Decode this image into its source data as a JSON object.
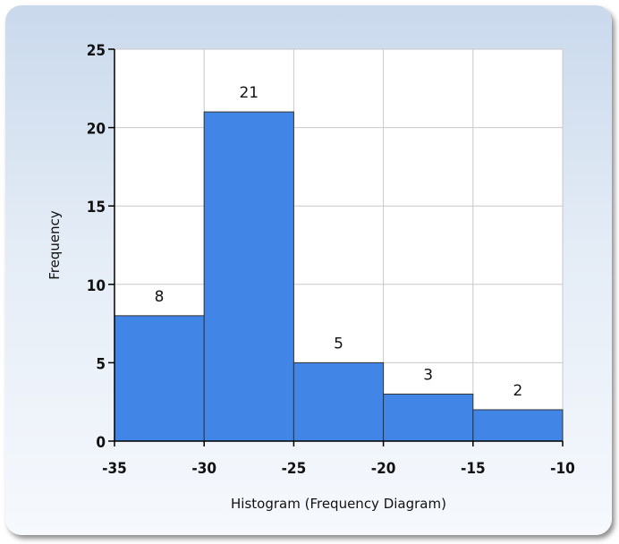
{
  "chart_data": {
    "type": "bar",
    "histogram": true,
    "bins": [
      {
        "from": -35,
        "to": -30,
        "value": 8
      },
      {
        "from": -30,
        "to": -25,
        "value": 21
      },
      {
        "from": -25,
        "to": -20,
        "value": 5
      },
      {
        "from": -20,
        "to": -15,
        "value": 3
      },
      {
        "from": -15,
        "to": -10,
        "value": 2
      }
    ],
    "x_ticks": [
      -35,
      -30,
      -25,
      -20,
      -15,
      -10
    ],
    "y_ticks": [
      0,
      5,
      10,
      15,
      20,
      25
    ],
    "xlim": [
      -35,
      -10
    ],
    "ylim": [
      0,
      25
    ],
    "xlabel": "Histogram (Frequency Diagram)",
    "ylabel": "Frequency",
    "grid": true,
    "legend": "none",
    "colors": {
      "bar_fill": "#4185e6",
      "bar_stroke": "#333333",
      "grid": "#c8c8c8",
      "axis": "#000000"
    }
  }
}
